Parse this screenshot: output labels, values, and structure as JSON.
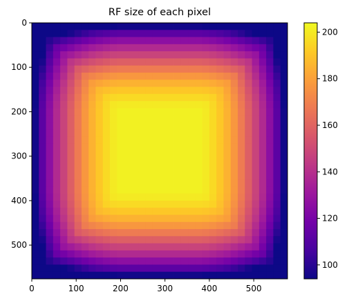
{
  "chart_data": {
    "type": "heatmap",
    "title": "RF size of each pixel",
    "xlabel": "",
    "ylabel": "",
    "x_range": [
      0,
      576
    ],
    "y_range": [
      576,
      0
    ],
    "x_ticks": [
      0,
      100,
      200,
      300,
      400,
      500
    ],
    "y_ticks": [
      0,
      100,
      200,
      300,
      400,
      500
    ],
    "grid": false,
    "grid_cells": 36,
    "cell_size": 16,
    "value_model": {
      "description": "Pixel receptive-field size as a function of distance from the image edge; plateau in the interior",
      "edge_levels": [
        95,
        112,
        126,
        138,
        148,
        158,
        168,
        177,
        185,
        191,
        196,
        200
      ],
      "plateau": 202
    },
    "colorbar": {
      "vmin": 94,
      "vmax": 204,
      "ticks": [
        100,
        120,
        140,
        160,
        180,
        200
      ],
      "colormap": "plasma"
    },
    "colormap_stops": [
      "#0d0887",
      "#47039f",
      "#7301a8",
      "#9c179e",
      "#bd3786",
      "#d8576b",
      "#ed7953",
      "#fb9f3a",
      "#fdca26",
      "#f0f921"
    ]
  }
}
